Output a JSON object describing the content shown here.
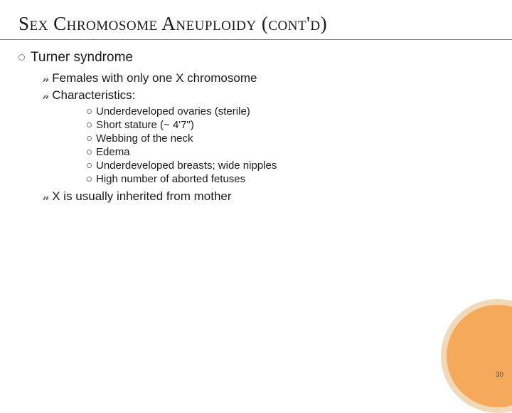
{
  "title": "Sex Chromosome Aneuploidy (cont'd)",
  "level1": {
    "heading": "Turner syndrome"
  },
  "level2": {
    "item0": "Females with only one X chromosome",
    "item1": "Characteristics:",
    "item2": "X is usually inherited from mother"
  },
  "level3": {
    "c0": "Underdeveloped ovaries (sterile)",
    "c1": "Short stature (~ 4'7\")",
    "c2": "Webbing of the neck",
    "c3": "Edema",
    "c4": "Underdeveloped breasts; wide nipples",
    "c5": "High number of aborted fetuses"
  },
  "pagenum": "30"
}
